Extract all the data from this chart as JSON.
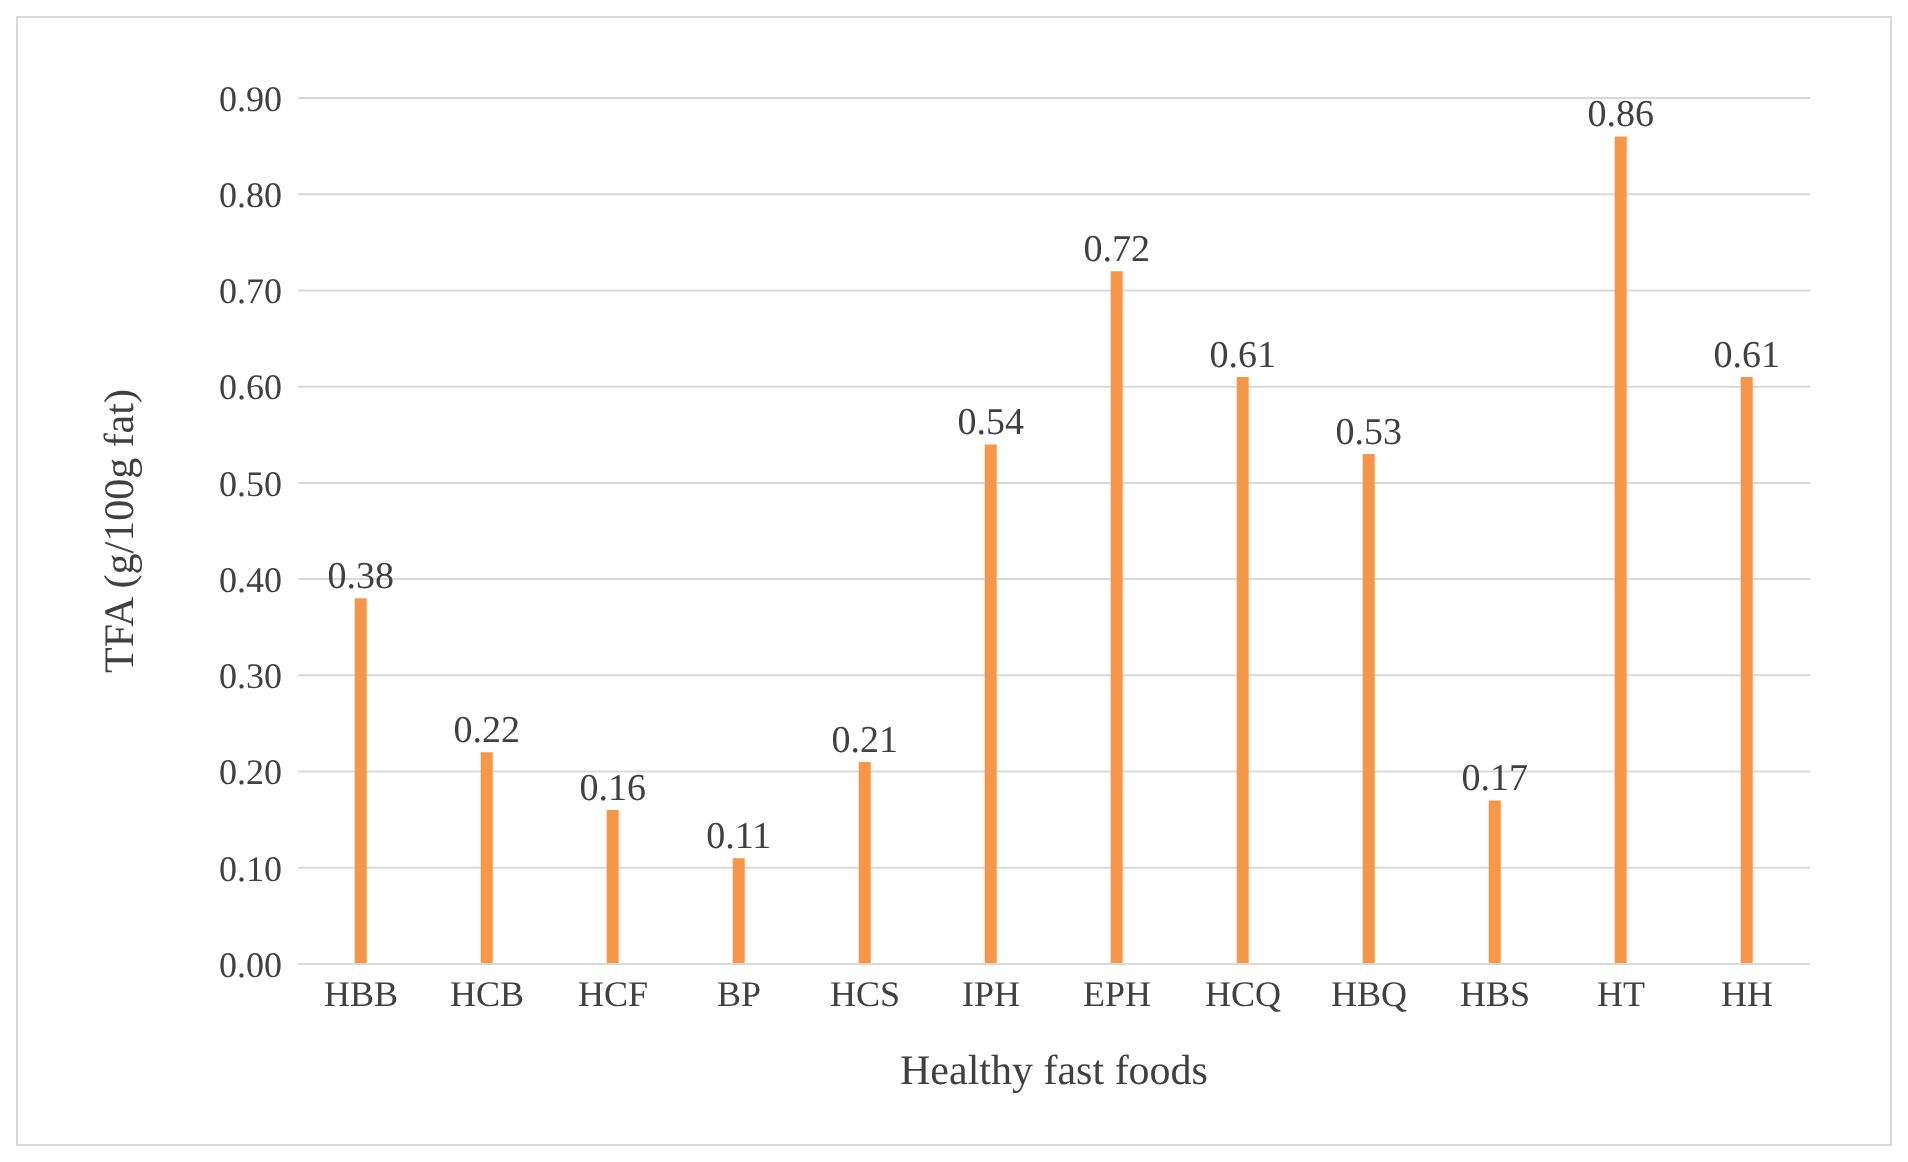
{
  "chart_data": {
    "type": "bar",
    "xlabel": "Healthy fast foods",
    "ylabel": "TFA (g/100g fat)",
    "categories": [
      "HBB",
      "HCB",
      "HCF",
      "BP",
      "HCS",
      "IPH",
      "EPH",
      "HCQ",
      "HBQ",
      "HBS",
      "HT",
      "HH"
    ],
    "values": [
      0.38,
      0.22,
      0.16,
      0.11,
      0.21,
      0.54,
      0.72,
      0.61,
      0.53,
      0.17,
      0.86,
      0.61
    ],
    "color": "#f79646",
    "ylim": [
      0,
      0.9
    ],
    "yticks": [
      {
        "value": 0,
        "label": "0.00"
      },
      {
        "value": 0.1,
        "label": "0.10"
      },
      {
        "value": 0.2,
        "label": "0.20"
      },
      {
        "value": 0.3,
        "label": "0.30"
      },
      {
        "value": 0.4,
        "label": "0.40"
      },
      {
        "value": 0.5,
        "label": "0.50"
      },
      {
        "value": 0.6,
        "label": "0.60"
      },
      {
        "value": 0.7,
        "label": "0.70"
      },
      {
        "value": 0.8,
        "label": "0.80"
      },
      {
        "value": 0.9,
        "label": "0.90"
      }
    ],
    "grid": "y",
    "data_labels": true
  }
}
